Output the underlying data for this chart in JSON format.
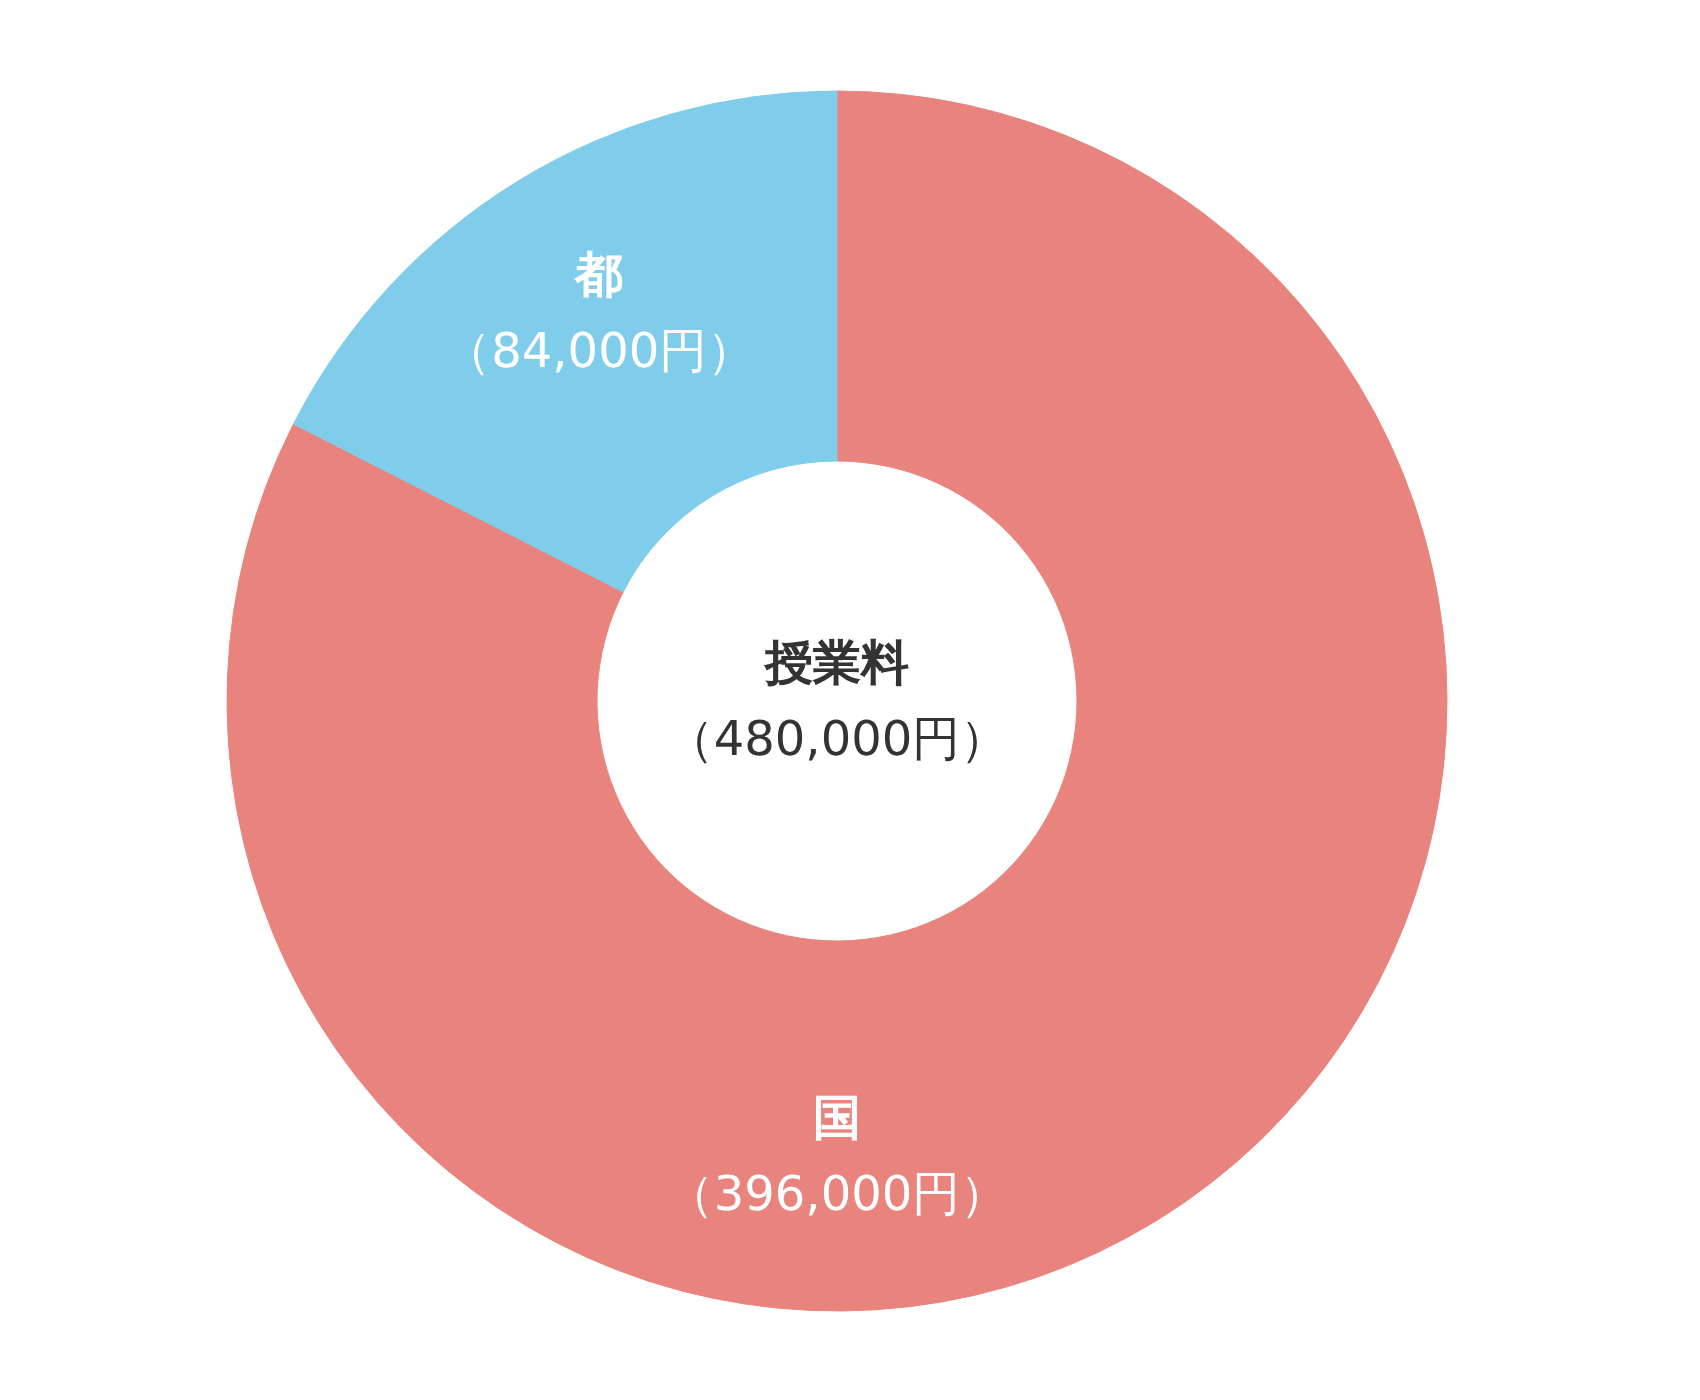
{
  "chart_data": {
    "type": "donut",
    "title": "授業料",
    "subtitle": "（480,000円）",
    "categories": [
      "国",
      "都"
    ],
    "values": [
      396000,
      84000
    ],
    "colors": [
      "#e9837d",
      "#7fcdea"
    ],
    "value_labels": [
      "（396,000円）",
      "（84,000円）"
    ]
  }
}
